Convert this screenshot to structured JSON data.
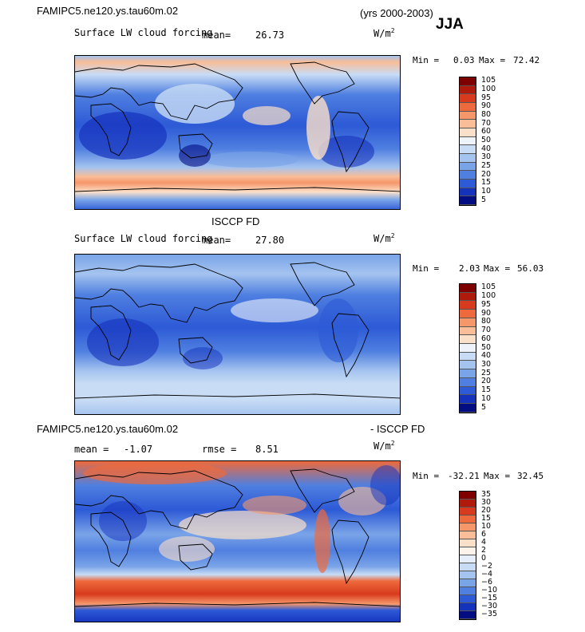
{
  "header": {
    "case_name": "FAMIPC5.ne120.ys.tau60m.02",
    "years": "(yrs 2000-2003)",
    "season": "JJA"
  },
  "panels": [
    {
      "title": "",
      "variable": "Surface LW cloud forcing",
      "mean_label": "mean=",
      "mean_value": "26.73",
      "units": "W/m",
      "units_sup": "2",
      "min_label": "Min =",
      "min_value": "0.03",
      "max_label": "Max =",
      "max_value": "72.42",
      "colorbar_levels": [
        "105",
        "100",
        "95",
        "90",
        "80",
        "70",
        "60",
        "50",
        "40",
        "30",
        "25",
        "20",
        "15",
        "10",
        "5"
      ]
    },
    {
      "title": "ISCCP FD",
      "variable": "Surface LW cloud forcing",
      "mean_label": "mean=",
      "mean_value": "27.80",
      "units": "W/m",
      "units_sup": "2",
      "min_label": "Min =",
      "min_value": "2.03",
      "max_label": "Max =",
      "max_value": "56.03",
      "colorbar_levels": [
        "105",
        "100",
        "95",
        "90",
        "80",
        "70",
        "60",
        "50",
        "40",
        "30",
        "25",
        "20",
        "15",
        "10",
        "5"
      ]
    },
    {
      "title_left": "FAMIPC5.ne120.ys.tau60m.02",
      "title_right": "- ISCCP FD",
      "mean_label": "mean =",
      "mean_value": "-1.07",
      "rmse_label": "rmse =",
      "rmse_value": "8.51",
      "units": "W/m",
      "units_sup": "2",
      "min_label": "Min =",
      "min_value": "-32.21",
      "max_label": "Max =",
      "max_value": "32.45",
      "colorbar_levels": [
        "35",
        "30",
        "20",
        "15",
        "10",
        "6",
        "4",
        "2",
        "0",
        "−2",
        "−4",
        "−6",
        "−10",
        "−15",
        "−30",
        "−35"
      ]
    }
  ],
  "colors": {
    "field_palette": [
      "#7f0000",
      "#b01a0a",
      "#d73a1c",
      "#ee6a3c",
      "#f6976a",
      "#f9bd98",
      "#fbe0c9",
      "#eef3fb",
      "#c8dcf5",
      "#a4c3ef",
      "#7aa4e8",
      "#4f7fe0",
      "#2d5ad6",
      "#1532bd",
      "#020c83"
    ],
    "diff_palette": [
      "#7f0000",
      "#b01a0a",
      "#d73a1c",
      "#ee6a3c",
      "#f6976a",
      "#f9bd98",
      "#fbe0c9",
      "#fdf3ea",
      "#e6eefb",
      "#c8dcf5",
      "#a4c3ef",
      "#7aa4e8",
      "#4f7fe0",
      "#2d5ad6",
      "#1532bd",
      "#020c83"
    ]
  }
}
